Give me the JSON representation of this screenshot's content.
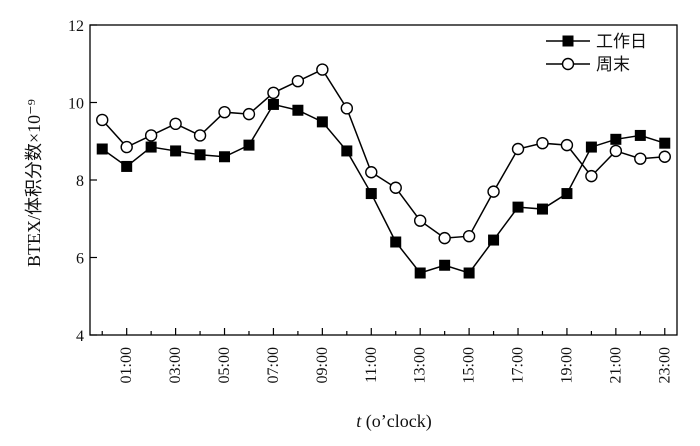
{
  "chart_data": {
    "type": "line",
    "title": "",
    "xlabel_italic": "t",
    "xlabel_rest": " (o’clock)",
    "ylabel": "BTEX/体积分数×10⁻⁹",
    "ylim": [
      4,
      12
    ],
    "yticks": [
      4,
      6,
      8,
      10,
      12
    ],
    "xlim": [
      -0.5,
      23.5
    ],
    "xtick_positions": [
      1,
      3,
      5,
      7,
      9,
      11,
      13,
      15,
      17,
      19,
      21,
      23
    ],
    "xtick_labels": [
      "01:00",
      "03:00",
      "05:00",
      "07:00",
      "09:00",
      "11:00",
      "13:00",
      "15:00",
      "17:00",
      "19:00",
      "21:00",
      "23:00"
    ],
    "x": [
      0,
      1,
      2,
      3,
      4,
      5,
      6,
      7,
      8,
      9,
      10,
      11,
      12,
      13,
      14,
      15,
      16,
      17,
      18,
      19,
      20,
      21,
      22,
      23
    ],
    "grid": false,
    "legend_position": "top-right",
    "series": [
      {
        "name": "工作日",
        "marker": "filled-square",
        "color": "#000000",
        "values": [
          8.8,
          8.35,
          8.85,
          8.75,
          8.65,
          8.6,
          8.9,
          9.95,
          9.8,
          9.5,
          8.75,
          7.65,
          6.4,
          5.6,
          5.8,
          5.6,
          6.45,
          7.3,
          7.25,
          7.65,
          8.85,
          9.05,
          9.15,
          8.95
        ]
      },
      {
        "name": "周末",
        "marker": "open-circle",
        "color": "#000000",
        "values": [
          9.55,
          8.85,
          9.15,
          9.45,
          9.15,
          9.75,
          9.7,
          10.25,
          10.55,
          10.85,
          9.85,
          8.2,
          7.8,
          6.95,
          6.5,
          6.55,
          7.7,
          8.8,
          8.95,
          8.9,
          8.1,
          8.75,
          8.55,
          8.6
        ]
      }
    ]
  }
}
